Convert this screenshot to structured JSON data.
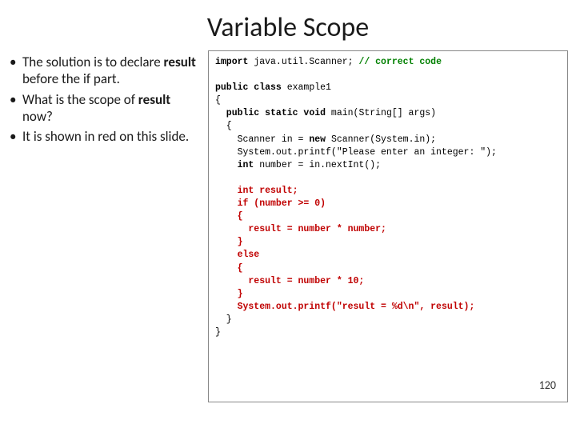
{
  "title": "Variable Scope",
  "bullets": [
    {
      "pre": "The solution is to declare ",
      "bold": "result",
      "post": " before the if part."
    },
    {
      "pre": "What is the scope of ",
      "bold": "result",
      "post": " now?"
    },
    {
      "pre": "It is shown in red on this slide.",
      "bold": "",
      "post": ""
    }
  ],
  "code": {
    "l1a": "import",
    "l1b": " java.util.Scanner; ",
    "l1c": "// correct code",
    "l2a": "public class",
    "l2b": " example1",
    "l3": "{",
    "l4a": "  public static void",
    "l4b": " main(String[] args)",
    "l5": "  {",
    "l6a": "    Scanner in = ",
    "l6b": "new",
    "l6c": " Scanner(System.in);",
    "l7": "    System.out.printf(\"Please enter an integer: \");",
    "l8a": "    int",
    "l8b": " number = in.nextInt();",
    "l9a": "    int result;",
    "l10a": "    if (number >= 0)",
    "l11a": "    {",
    "l12a": "      result = number * number;",
    "l13a": "    }",
    "l14a": "    else",
    "l15a": "    {",
    "l16a": "      result = number * 10;",
    "l17a": "    }",
    "l18a": "    System.out.printf(\"result = %d\\n\", result);",
    "l19": "  }",
    "l20": "}"
  },
  "slide_number": "120",
  "colors": {
    "keyword": "#000000",
    "red": "#c00000",
    "green": "#008000",
    "text": "#1a1a1a",
    "border": "#888888",
    "background": "#ffffff"
  }
}
